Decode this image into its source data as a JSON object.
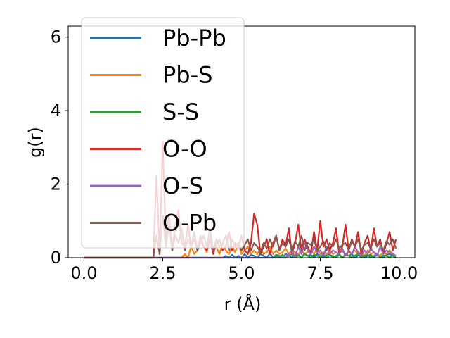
{
  "chart_data": {
    "type": "line",
    "xlabel": "r (Å)",
    "ylabel": "g(r)",
    "xlim": [
      -0.5,
      10.5
    ],
    "ylim": [
      0,
      6.3
    ],
    "xticks": [
      "0.0",
      "2.5",
      "5.0",
      "7.5",
      "10.0"
    ],
    "xtick_values": [
      0,
      2.5,
      5,
      7.5,
      10
    ],
    "yticks": [
      "0",
      "2",
      "4",
      "6"
    ],
    "ytick_values": [
      0,
      2,
      4,
      6
    ],
    "legend_position": "upper-left",
    "grid": false,
    "x": [
      0,
      0.1,
      0.2,
      0.3,
      0.4,
      0.5,
      0.6,
      0.7,
      0.8,
      0.9,
      1.0,
      1.1,
      1.2,
      1.3,
      1.4,
      1.5,
      1.6,
      1.7,
      1.8,
      1.9,
      2.0,
      2.1,
      2.2,
      2.3,
      2.4,
      2.5,
      2.6,
      2.7,
      2.8,
      2.9,
      3.0,
      3.1,
      3.2,
      3.3,
      3.4,
      3.5,
      3.6,
      3.7,
      3.8,
      3.9,
      4.0,
      4.1,
      4.2,
      4.3,
      4.4,
      4.5,
      4.6,
      4.7,
      4.8,
      4.9,
      5.0,
      5.1,
      5.2,
      5.3,
      5.4,
      5.5,
      5.6,
      5.7,
      5.8,
      5.9,
      6.0,
      6.1,
      6.2,
      6.3,
      6.4,
      6.5,
      6.6,
      6.7,
      6.8,
      6.9,
      7.0,
      7.1,
      7.2,
      7.3,
      7.4,
      7.5,
      7.6,
      7.7,
      7.8,
      7.9,
      8.0,
      8.1,
      8.2,
      8.3,
      8.4,
      8.5,
      8.6,
      8.7,
      8.8,
      8.9,
      9.0,
      9.1,
      9.2,
      9.3,
      9.4,
      9.5,
      9.6,
      9.7,
      9.8,
      9.9
    ],
    "series": [
      {
        "name": "Pb-Pb",
        "color": "#1f77b4",
        "values": [
          0,
          0,
          0,
          0,
          0,
          0,
          0,
          0,
          0,
          0,
          0,
          0,
          0,
          0,
          0,
          0,
          0,
          0,
          0,
          0,
          0,
          0,
          0,
          0,
          0,
          0,
          0,
          0,
          0,
          0,
          0,
          0,
          0,
          0,
          0,
          0,
          0,
          0,
          0,
          0,
          0,
          0,
          0,
          0,
          0,
          0.05,
          0,
          0.08,
          0,
          0.05,
          0,
          0.1,
          0,
          0.08,
          0.05,
          0,
          0.1,
          0.05,
          0,
          0.12,
          0,
          0.08,
          0.05,
          0,
          0.1,
          0.06,
          0,
          0.05,
          0.1,
          0,
          0.12,
          0.05,
          0.08,
          0,
          0.1,
          0.05,
          0,
          0.08,
          0.1,
          0,
          0.05,
          0.1,
          0,
          0.08,
          0.05,
          0.1,
          0,
          0.06,
          0.1,
          0,
          0.05,
          0.08,
          0,
          0.1,
          0.05,
          0,
          0.08,
          0.1,
          0.05,
          0
        ]
      },
      {
        "name": "Pb-S",
        "color": "#ff7f0e",
        "values": [
          0,
          0,
          0,
          0,
          0,
          0,
          0,
          0,
          0,
          0,
          0,
          0,
          0,
          0,
          0,
          0,
          0,
          0,
          0,
          0,
          0,
          0,
          0,
          0,
          0,
          0,
          0,
          0,
          0,
          0,
          0,
          0,
          0.1,
          0,
          0.3,
          0.1,
          0.2,
          0.5,
          0.3,
          0.15,
          0.6,
          0.2,
          0.3,
          0.1,
          0.4,
          0.2,
          0.1,
          0.3,
          0.15,
          0.4,
          0.1,
          0.2,
          0.3,
          0.1,
          0.2,
          0.1,
          0.25,
          0.1,
          0.15,
          0.3,
          0.1,
          0.2,
          0.1,
          0.15,
          0.25,
          0.1,
          0.2,
          0.15,
          0.1,
          0.2,
          0.1,
          0.15,
          0.2,
          0.1,
          0.25,
          0.1,
          0.15,
          0.1,
          0.2,
          0.1,
          0.15,
          0.1,
          0.2,
          0.05,
          0.15,
          0.1,
          0.2,
          0.1,
          0.15,
          0.05,
          0.2,
          0.1,
          0.15,
          0.1,
          0.05,
          0.15,
          0.1,
          0.2,
          0.1,
          0.05
        ]
      },
      {
        "name": "S-S",
        "color": "#2ca02c",
        "values": [
          0,
          0,
          0,
          0,
          0,
          0,
          0,
          0,
          0,
          0,
          0,
          0,
          0,
          0,
          0,
          0,
          0,
          0,
          0,
          0,
          0,
          0,
          0,
          0,
          0,
          0,
          0,
          0,
          0,
          0,
          0,
          0,
          0,
          0,
          0,
          0,
          0,
          0,
          0,
          0,
          0,
          0,
          0,
          0,
          0,
          0,
          0,
          0,
          0,
          0,
          0,
          0,
          0,
          0,
          0,
          0,
          0,
          0,
          0,
          0,
          0,
          0.05,
          0,
          0.08,
          0,
          0.05,
          0.1,
          0,
          0.06,
          0,
          0.1,
          0.05,
          0,
          0.08,
          0.05,
          0,
          0.1,
          0,
          0.06,
          0.05,
          0,
          0.08,
          0,
          0.1,
          0.05,
          0,
          0.06,
          0.1,
          0,
          0.05,
          0.08,
          0,
          0.05,
          0.1,
          0,
          0.06,
          0.05,
          0,
          0.08,
          0
        ]
      },
      {
        "name": "O-O",
        "color": "#d62728",
        "values": [
          0,
          0,
          0,
          0,
          0,
          0,
          0,
          0,
          0,
          0,
          0,
          0,
          0,
          0,
          0,
          0,
          0,
          0,
          0,
          0,
          0,
          0,
          0,
          2.25,
          0.1,
          3.15,
          0.5,
          1.2,
          0.2,
          0.9,
          1.3,
          0.4,
          0.3,
          0.9,
          0.3,
          0.5,
          0.2,
          0.6,
          0.3,
          0.2,
          0.5,
          0.1,
          0.4,
          0.5,
          0.2,
          0.3,
          0.7,
          0.2,
          0.4,
          0.3,
          0.6,
          0.2,
          0.1,
          0.4,
          1.2,
          0.9,
          0.1,
          0.3,
          0.5,
          0.1,
          0.4,
          0.6,
          0.2,
          0.5,
          0.3,
          0.8,
          0.1,
          0.4,
          0.9,
          0.2,
          0.5,
          0.3,
          0.1,
          0.7,
          0.2,
          1.0,
          0.3,
          0.5,
          0.2,
          0.4,
          0.8,
          0.1,
          0.3,
          0.9,
          0.2,
          0.5,
          0.3,
          0.7,
          0.1,
          0.4,
          0.6,
          0.2,
          0.8,
          0.3,
          0.5,
          0.1,
          0.4,
          0.7,
          0.2,
          0.5
        ]
      },
      {
        "name": "O-S",
        "color": "#9467bd",
        "values": [
          0,
          0,
          0,
          0,
          0,
          0,
          0,
          0,
          0,
          0,
          0,
          0,
          0,
          0,
          0,
          0,
          0,
          0,
          0,
          0,
          0,
          0,
          0,
          0,
          0,
          0,
          0,
          0,
          0,
          0,
          0,
          0,
          0,
          0,
          0,
          0,
          0,
          0,
          0,
          0,
          0,
          0,
          0,
          0,
          0,
          0,
          0,
          0,
          0,
          0,
          0,
          0,
          0,
          0,
          0,
          0,
          0,
          0,
          0,
          0,
          0,
          0,
          0,
          0,
          0,
          0.1,
          0.2,
          0,
          0.3,
          0.1,
          0.4,
          0.2,
          0.1,
          0.3,
          0.15,
          0.2,
          0.05,
          0.3,
          0.1,
          0.2,
          0.15,
          0.1,
          0.25,
          0.05,
          0.2,
          0.1,
          0.3,
          0.15,
          0.05,
          0.2,
          0.1,
          0.25,
          0.15,
          0.05,
          0.3,
          0.1,
          0.2,
          0.15,
          0.1,
          0.05
        ]
      },
      {
        "name": "O-Pb",
        "color": "#8c564b",
        "values": [
          0,
          0,
          0,
          0,
          0,
          0,
          0,
          0,
          0,
          0,
          0,
          0,
          0,
          0,
          0,
          0,
          0,
          0,
          0,
          0,
          0,
          0,
          0,
          0.6,
          0.1,
          1.15,
          0.3,
          0.9,
          0.2,
          0.6,
          0.4,
          0.8,
          0.2,
          0.5,
          0.3,
          0.7,
          0.2,
          0.4,
          0.6,
          0.3,
          0.8,
          0.2,
          0.5,
          0.3,
          0.4,
          0.6,
          0.2,
          0.5,
          0.3,
          0.4,
          0.2,
          0.35,
          0.5,
          0.2,
          0.4,
          0.3,
          0.15,
          0.4,
          0.25,
          0.5,
          0.3,
          0.6,
          0.2,
          0.4,
          0.3,
          0.5,
          0.2,
          0.45,
          0.3,
          0.6,
          0.2,
          0.4,
          0.35,
          0.5,
          0.2,
          0.3,
          0.45,
          0.2,
          0.4,
          0.3,
          0.5,
          0.25,
          0.35,
          0.4,
          0.2,
          0.45,
          0.3,
          0.5,
          0.2,
          0.35,
          0.4,
          0.25,
          0.5,
          0.3,
          0.4,
          0.2,
          0.45,
          0.35,
          0.5,
          0.25
        ]
      }
    ]
  }
}
